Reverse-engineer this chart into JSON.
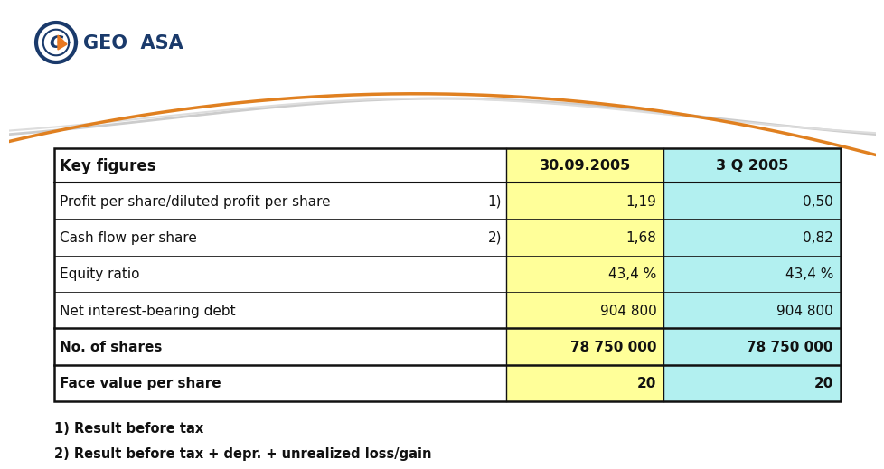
{
  "title": "Key figures",
  "col1_header": "30.09.2005",
  "col2_header": "3 Q 2005",
  "rows": [
    {
      "label": "Profit per share/diluted profit per share",
      "note": "1)",
      "val1": "1,19",
      "val2": "0,50"
    },
    {
      "label": "Cash flow per share",
      "note": "2)",
      "val1": "1,68",
      "val2": "0,82"
    },
    {
      "label": "Equity ratio",
      "note": "",
      "val1": "43,4 %",
      "val2": "43,4 %"
    },
    {
      "label": "Net interest-bearing debt",
      "note": "",
      "val1": "904 800",
      "val2": "904 800"
    },
    {
      "label": "No. of shares",
      "note": "",
      "val1": "78 750 000",
      "val2": "78 750 000"
    },
    {
      "label": "Face value per share",
      "note": "",
      "val1": "20",
      "val2": "20"
    }
  ],
  "footnotes": [
    "1) Result before tax",
    "2) Result before tax + depr. + unrealized loss/gain"
  ],
  "header_bg1": "#ffff99",
  "header_bg2": "#b2f0f0",
  "col1_bg": "#ffff99",
  "col2_bg": "#b2f0f0",
  "border_color": "#111111",
  "text_color": "#111111",
  "background_color": "#ffffff",
  "logo_text": "GEO  ASA",
  "logo_color": "#1a3a6b",
  "logo_orange": "#e87820",
  "wave_gray1": "#cccccc",
  "wave_gray2": "#dddddd",
  "wave_orange": "#e08020"
}
